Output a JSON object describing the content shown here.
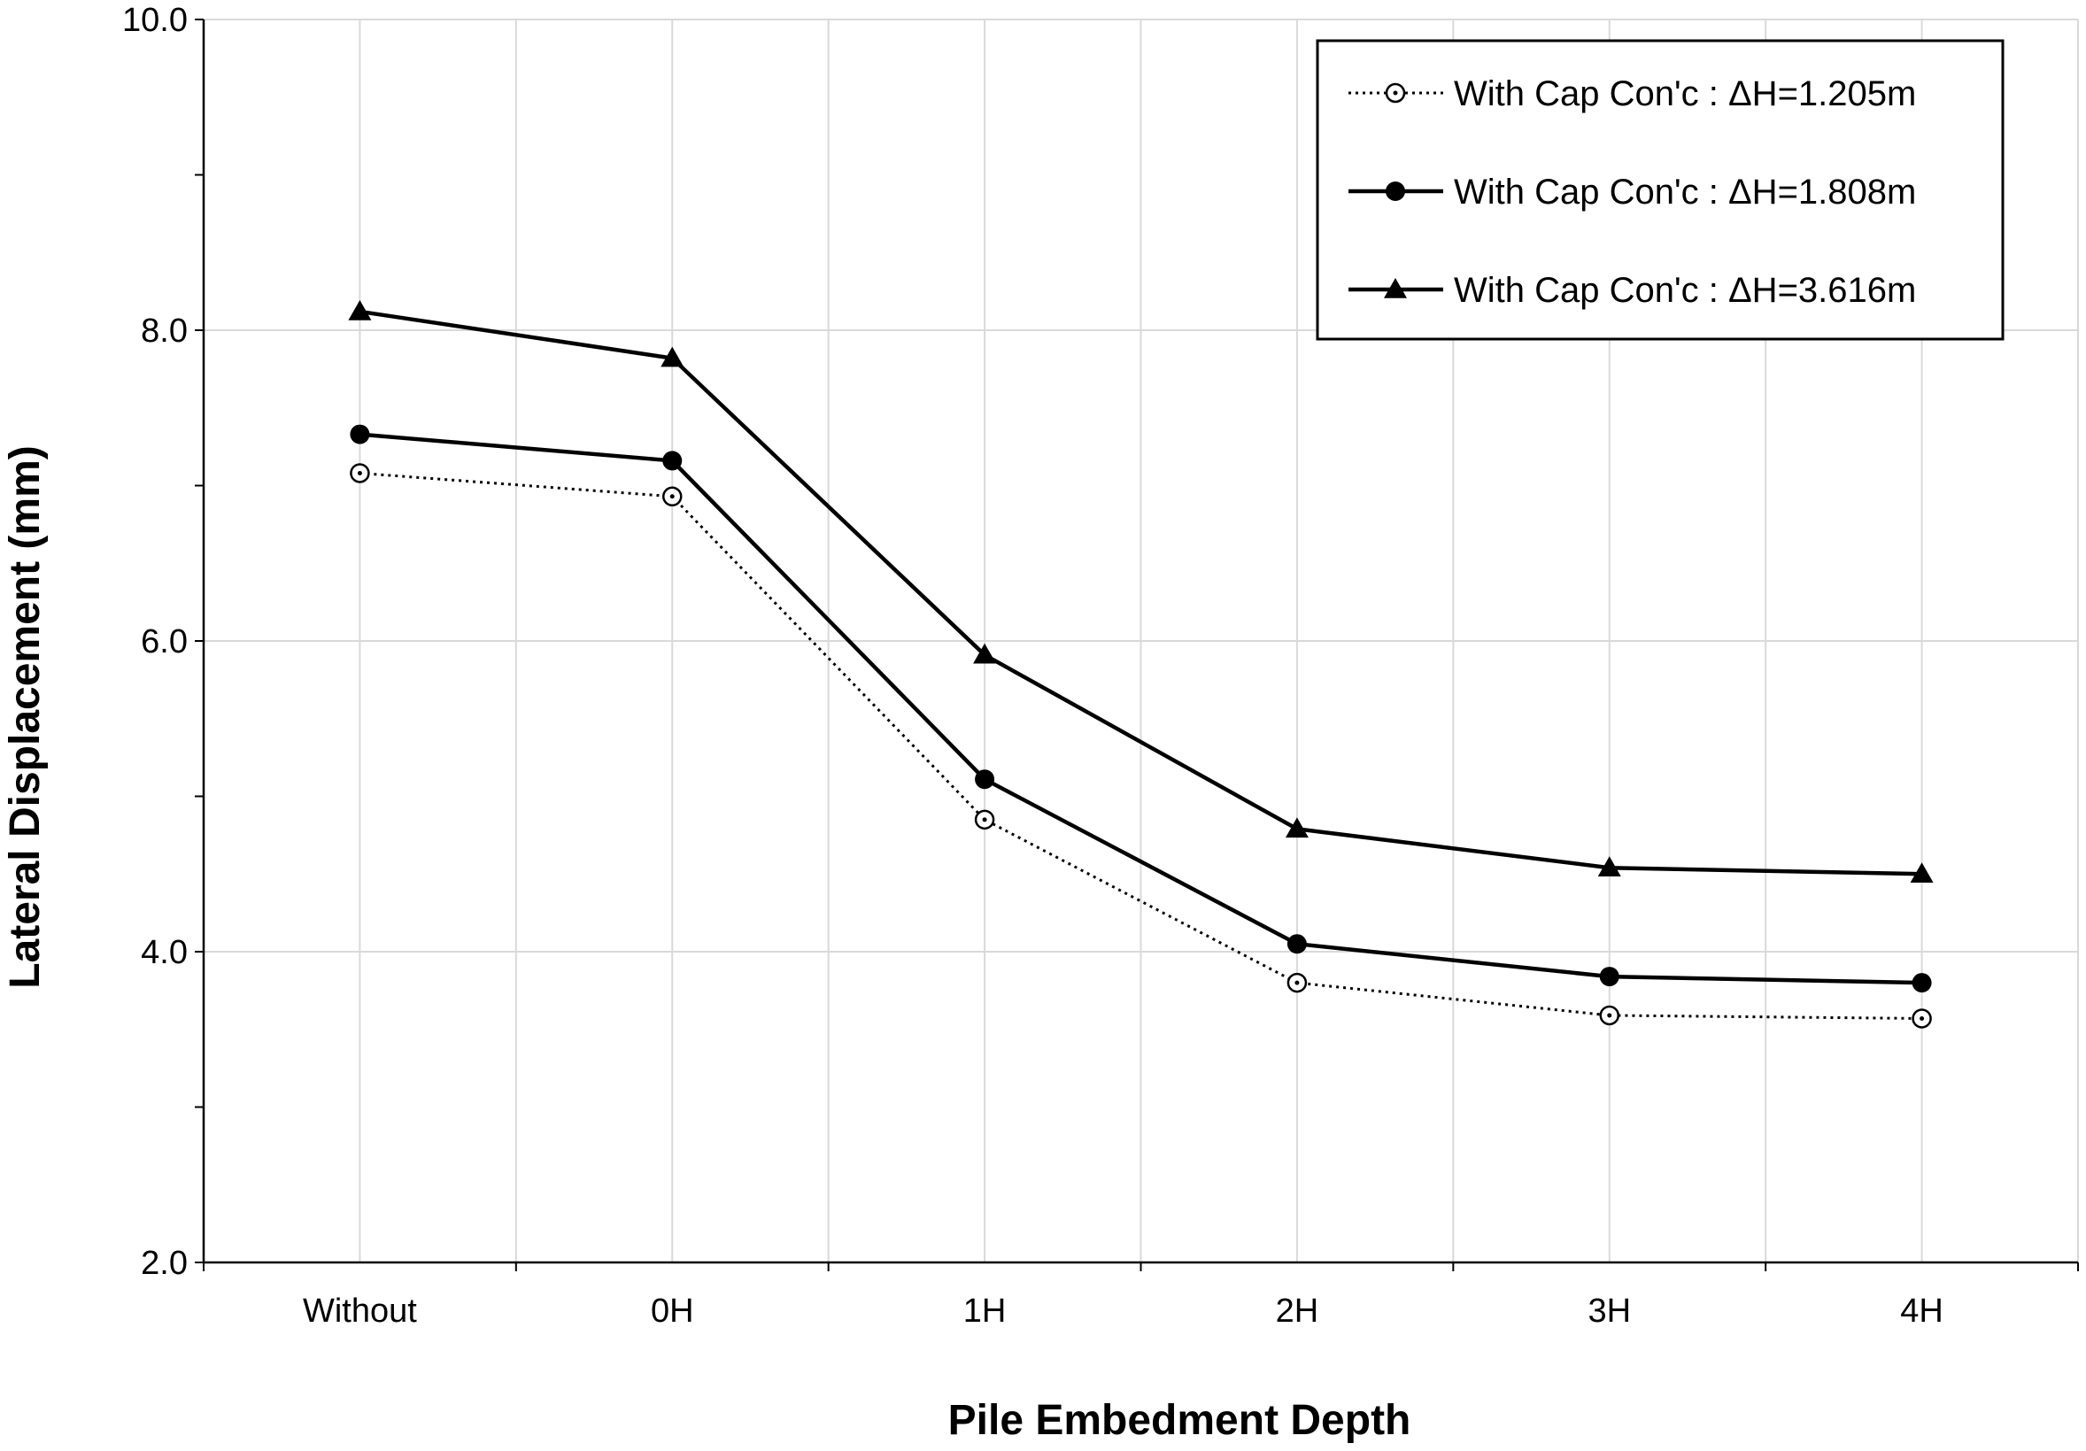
{
  "chart_data": {
    "type": "line",
    "title": "",
    "xlabel": "Pile Embedment Depth",
    "ylabel": "Lateral Displacement (mm)",
    "categories": [
      "Without",
      "0H",
      "1H",
      "2H",
      "3H",
      "4H"
    ],
    "ylim": [
      2.0,
      10.0
    ],
    "yticks": [
      2.0,
      4.0,
      6.0,
      8.0,
      10.0
    ],
    "ytick_labels": [
      "2.0",
      "4.0",
      "6.0",
      "8.0",
      "10.0"
    ],
    "y_minor_step": 1.0,
    "grid": true,
    "legend_position": "top-right",
    "series": [
      {
        "name": "With Cap Con'c : ΔH=1.205m",
        "marker": "open-circle",
        "line": "dotted",
        "values": [
          7.08,
          6.93,
          4.85,
          3.8,
          3.59,
          3.57
        ]
      },
      {
        "name": "With Cap Con'c : ΔH=1.808m",
        "marker": "filled-circle",
        "line": "solid",
        "values": [
          7.33,
          7.16,
          5.11,
          4.05,
          3.84,
          3.8
        ]
      },
      {
        "name": "With Cap Con'c : ΔH=3.616m",
        "marker": "filled-triangle",
        "line": "solid",
        "values": [
          8.12,
          7.82,
          5.91,
          4.79,
          4.54,
          4.5
        ]
      }
    ]
  }
}
